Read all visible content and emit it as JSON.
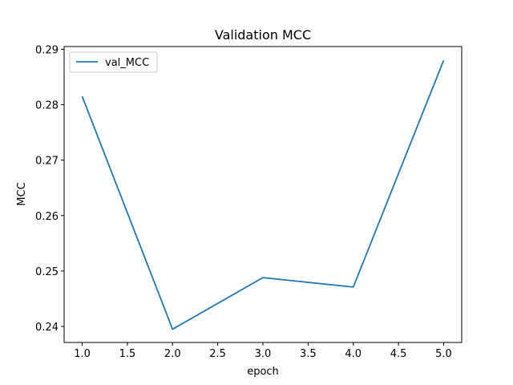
{
  "chart_data": {
    "type": "line",
    "title": "Validation MCC",
    "xlabel": "epoch",
    "ylabel": "MCC",
    "x": [
      1.0,
      2.0,
      3.0,
      4.0,
      5.0
    ],
    "series": [
      {
        "name": "val_MCC",
        "values": [
          0.2815,
          0.2395,
          0.2488,
          0.2471,
          0.288
        ],
        "color": "#1f77b4"
      }
    ],
    "xlim": [
      0.8,
      5.2
    ],
    "ylim": [
      0.2371,
      0.2905
    ],
    "xticks": [
      "1.0",
      "1.5",
      "2.0",
      "2.5",
      "3.0",
      "3.5",
      "4.0",
      "4.5",
      "5.0"
    ],
    "yticks": [
      "0.24",
      "0.25",
      "0.26",
      "0.27",
      "0.28",
      "0.29"
    ],
    "grid": false,
    "legend_position": "top-left"
  }
}
